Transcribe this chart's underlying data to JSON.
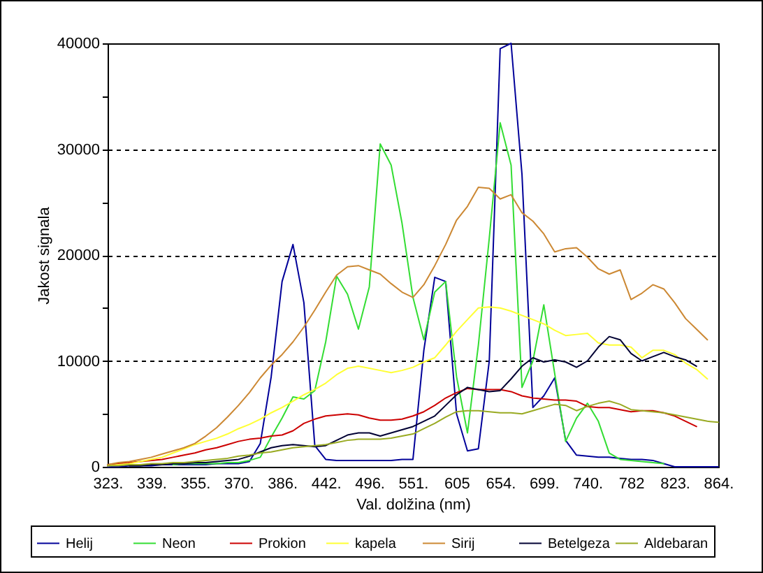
{
  "chart_data": {
    "type": "line",
    "xlabel": "Val. dolžina (nm)",
    "ylabel": "Jakost signala",
    "categories": [
      "323.",
      null,
      null,
      null,
      "339.",
      null,
      null,
      null,
      "355.",
      null,
      null,
      null,
      "370.",
      null,
      null,
      null,
      "386.",
      null,
      null,
      null,
      "442.",
      null,
      null,
      null,
      "496.",
      null,
      null,
      null,
      "551.",
      null,
      null,
      null,
      "605",
      null,
      null,
      null,
      "654.",
      null,
      null,
      null,
      "699.",
      null,
      null,
      null,
      "740.",
      null,
      null,
      null,
      "782",
      null,
      null,
      null,
      "823.",
      null,
      null,
      null,
      "864."
    ],
    "ylim": [
      0,
      40000
    ],
    "yticks": [
      0,
      {
        "value": 5000,
        "label": null
      },
      10000,
      {
        "value": 15000,
        "label": null
      },
      20000,
      {
        "value": 25000,
        "label": null
      },
      30000,
      {
        "value": 35000,
        "label": null
      },
      40000
    ],
    "grid": "y",
    "legend": "bottom",
    "series": [
      {
        "name": "Helij",
        "color": "#000099",
        "values": [
          0,
          0,
          100,
          100,
          100,
          200,
          200,
          200,
          200,
          200,
          300,
          300,
          300,
          500,
          2200,
          8500,
          17500,
          21000,
          15500,
          2000,
          700,
          600,
          600,
          600,
          600,
          600,
          600,
          700,
          700,
          11000,
          17900,
          17500,
          5000,
          1500,
          1700,
          10000,
          39500,
          40000,
          27600,
          5600,
          6700,
          8400,
          2500,
          1100,
          1000,
          900,
          900,
          800,
          700,
          700,
          600,
          300,
          0,
          0,
          0,
          0,
          0
        ]
      },
      {
        "name": "Neon",
        "color": "#33dd33",
        "values": [
          null,
          null,
          null,
          null,
          null,
          null,
          200,
          300,
          300,
          300,
          300,
          400,
          400,
          600,
          900,
          2800,
          4600,
          6600,
          6400,
          7200,
          11800,
          18000,
          16300,
          13000,
          17000,
          30500,
          28500,
          23000,
          16000,
          12000,
          16500,
          17500,
          8500,
          3200,
          11500,
          21600,
          32500,
          28500,
          7500,
          10000,
          15300,
          8800,
          2400,
          4600,
          6000,
          4300,
          1300,
          700,
          600,
          500,
          400,
          300,
          null,
          null,
          null,
          null,
          null
        ]
      },
      {
        "name": "Prokion",
        "color": "#cc0000",
        "values": [
          200,
          300,
          400,
          500,
          600,
          700,
          900,
          1100,
          1300,
          1600,
          1800,
          2100,
          2400,
          2600,
          2700,
          2900,
          3000,
          3400,
          4100,
          4500,
          4800,
          4900,
          5000,
          4900,
          4600,
          4400,
          4400,
          4500,
          4800,
          5200,
          5800,
          6500,
          7000,
          7400,
          7300,
          7300,
          7300,
          7100,
          6700,
          6500,
          6400,
          6300,
          6300,
          6200,
          5700,
          5600,
          5600,
          5400,
          5200,
          5300,
          5300,
          5100,
          4800,
          4300,
          3800,
          null,
          null
        ]
      },
      {
        "name": "kapela",
        "color": "#ffff33",
        "values": [
          100,
          200,
          300,
          500,
          700,
          900,
          1300,
          1700,
          2100,
          2400,
          2700,
          3100,
          3600,
          4000,
          4500,
          5100,
          5600,
          6200,
          6800,
          7300,
          7900,
          8700,
          9300,
          9500,
          9300,
          9100,
          8900,
          9100,
          9400,
          9900,
          10300,
          11500,
          12800,
          13900,
          15000,
          15100,
          15000,
          14700,
          14300,
          13900,
          13500,
          12900,
          12400,
          12500,
          12600,
          11700,
          11500,
          11500,
          11300,
          10300,
          11000,
          11000,
          10600,
          9800,
          9200,
          8300,
          null
        ]
      },
      {
        "name": "Sirij",
        "color": "#cc8833",
        "values": [
          200,
          400,
          500,
          700,
          900,
          1200,
          1500,
          1800,
          2200,
          2900,
          3700,
          4700,
          5800,
          7000,
          8400,
          9600,
          10600,
          11800,
          13200,
          14800,
          16500,
          18100,
          18900,
          19000,
          18600,
          18200,
          17300,
          16500,
          16000,
          17200,
          19000,
          21000,
          23300,
          24600,
          26400,
          26300,
          25300,
          25700,
          24000,
          23200,
          22000,
          20300,
          20600,
          20700,
          19800,
          18700,
          18200,
          18600,
          15800,
          16400,
          17200,
          16800,
          15500,
          14000,
          13000,
          12000,
          null
        ]
      },
      {
        "name": "Betelgeza",
        "color": "#000033",
        "values": [
          null,
          null,
          100,
          100,
          200,
          200,
          300,
          300,
          400,
          400,
          500,
          600,
          700,
          1000,
          1400,
          1800,
          2000,
          2100,
          2000,
          1900,
          2000,
          2500,
          3000,
          3200,
          3200,
          2900,
          3200,
          3500,
          3800,
          4300,
          4800,
          5800,
          6800,
          7500,
          7300,
          7100,
          7200,
          8300,
          9500,
          10300,
          9900,
          10100,
          9900,
          9400,
          10000,
          11300,
          12300,
          12000,
          10700,
          10000,
          10400,
          10800,
          10400,
          10100,
          9500,
          null,
          null
        ]
      },
      {
        "name": "Aldebaran",
        "color": "#99aa22",
        "values": [
          100,
          100,
          200,
          200,
          300,
          300,
          400,
          400,
          500,
          600,
          700,
          800,
          1000,
          1100,
          1300,
          1400,
          1600,
          1800,
          1900,
          2000,
          2100,
          2300,
          2500,
          2600,
          2600,
          2600,
          2700,
          2900,
          3100,
          3600,
          4100,
          4700,
          5200,
          5300,
          5300,
          5200,
          5100,
          5100,
          5000,
          5300,
          5600,
          5900,
          5800,
          5300,
          5700,
          6000,
          6200,
          5900,
          5400,
          5300,
          5200,
          5100,
          4900,
          4700,
          4500,
          4300,
          4200
        ]
      }
    ]
  }
}
